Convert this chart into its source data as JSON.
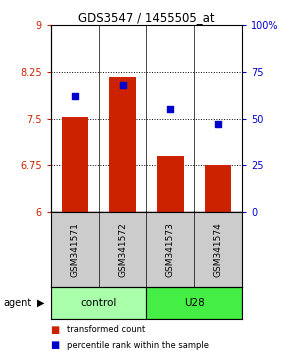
{
  "title": "GDS3547 / 1455505_at",
  "samples": [
    "GSM341571",
    "GSM341572",
    "GSM341573",
    "GSM341574"
  ],
  "bar_values": [
    7.52,
    8.17,
    6.9,
    6.75
  ],
  "percentile_values": [
    62,
    68,
    55,
    47
  ],
  "ylim_left": [
    6,
    9
  ],
  "ylim_right": [
    0,
    100
  ],
  "yticks_left": [
    6,
    6.75,
    7.5,
    8.25,
    9
  ],
  "ytick_labels_left": [
    "6",
    "6.75",
    "7.5",
    "8.25",
    "9"
  ],
  "yticks_right": [
    0,
    25,
    50,
    75,
    100
  ],
  "bar_color": "#cc2200",
  "dot_color": "#0000cc",
  "groups": [
    {
      "label": "control",
      "indices": [
        0,
        1
      ],
      "color": "#aaffaa"
    },
    {
      "label": "U28",
      "indices": [
        2,
        3
      ],
      "color": "#44ee44"
    }
  ],
  "agent_label": "agent",
  "legend_bar_label": "transformed count",
  "legend_dot_label": "percentile rank within the sample",
  "hlines": [
    6.75,
    7.5,
    8.25
  ],
  "background_color": "#ffffff"
}
